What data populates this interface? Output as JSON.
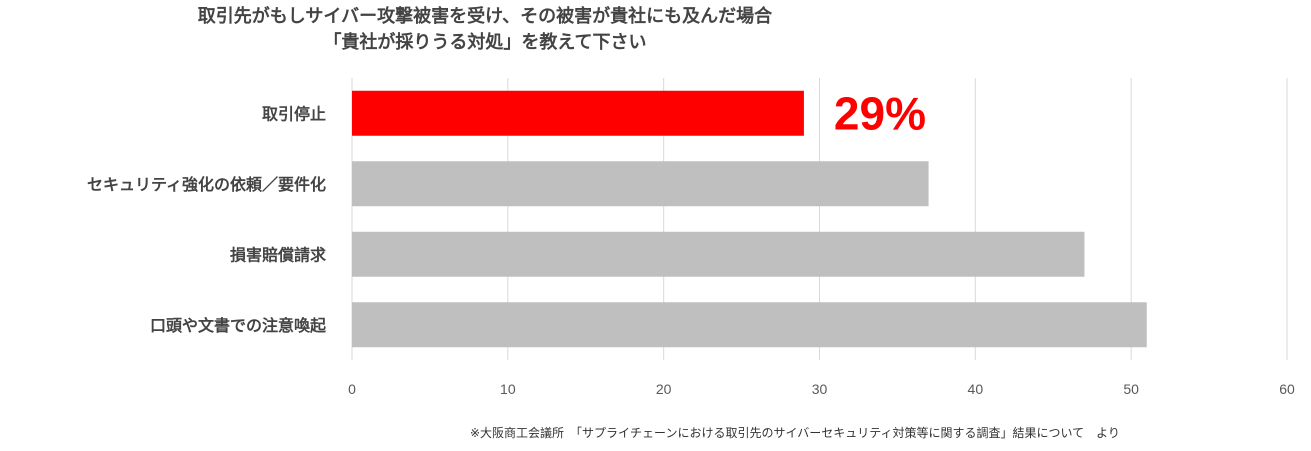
{
  "chart_data": {
    "type": "bar",
    "orientation": "horizontal",
    "title": [
      "取引先がもしサイバー攻撃被害を受け、その被害が貴社にも及んだ場合",
      "「貴社が採りうる対処」を教えて下さい"
    ],
    "categories": [
      "取引停止",
      "セキュリティ強化の依頼／要件化",
      "損害賠償請求",
      "口頭や文書での注意喚起"
    ],
    "values": [
      29,
      37,
      47,
      51
    ],
    "xlim": [
      0,
      60
    ],
    "xticks": [
      "0",
      "10",
      "20",
      "30",
      "40",
      "50",
      "60"
    ],
    "grid": true,
    "colors": [
      "#ff0000",
      "#bfbfbf",
      "#bfbfbf",
      "#bfbfbf"
    ],
    "annotation": {
      "text": "29%",
      "color": "#ff0000",
      "category": "取引停止"
    }
  },
  "source": "※大阪商工会議所　「サプライチェーンにおける取引先のサイバーセキュリティ対策等に関する調査」結果について　より"
}
